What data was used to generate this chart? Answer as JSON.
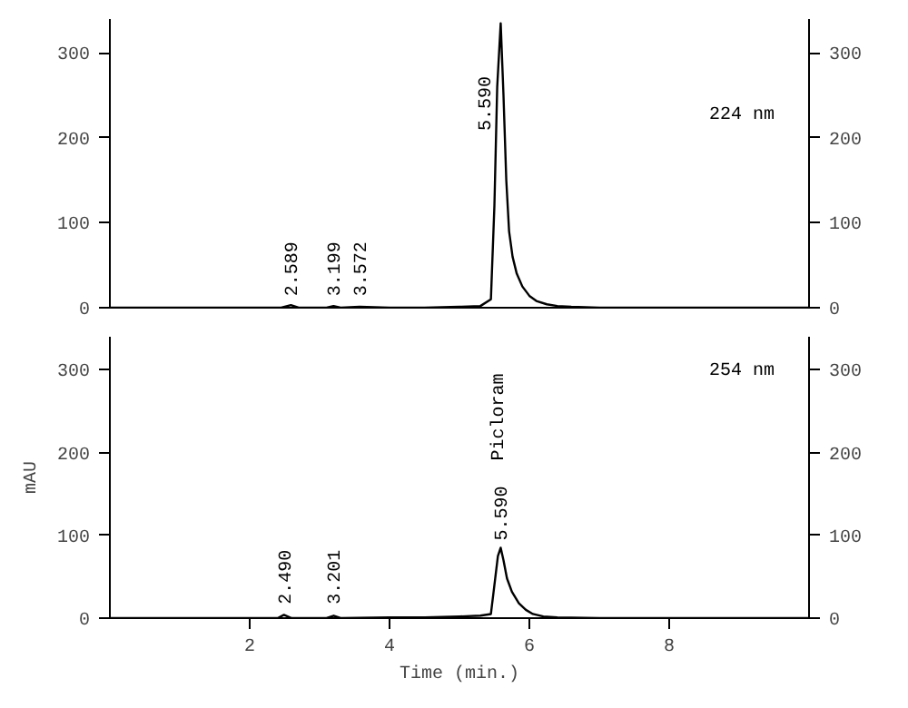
{
  "chart_data": [
    {
      "type": "line",
      "xlim": [
        0,
        10
      ],
      "xticks": [
        2,
        4,
        6,
        8
      ],
      "ylim": [
        0,
        340
      ],
      "yticks": [
        0,
        100,
        200,
        300
      ],
      "y2lim": [
        0,
        340
      ],
      "y2ticks": [
        0,
        100,
        200,
        300
      ],
      "tick_labels": "y",
      "grid": false,
      "series": [
        {
          "color": "#000000",
          "x": [
            0,
            1,
            2,
            2.45,
            2.589,
            2.7,
            3.1,
            3.199,
            3.3,
            3.572,
            4,
            4.5,
            5,
            5.3,
            5.45,
            5.5,
            5.54,
            5.59,
            5.63,
            5.67,
            5.71,
            5.76,
            5.82,
            5.9,
            6.0,
            6.1,
            6.25,
            6.4,
            6.6,
            7,
            8,
            9,
            10
          ],
          "values": [
            0,
            0,
            0,
            0,
            3,
            0,
            0,
            2,
            0,
            1,
            0,
            0,
            1,
            2,
            10,
            120,
            260,
            335,
            250,
            150,
            90,
            60,
            40,
            25,
            14,
            8,
            4,
            2,
            1,
            0,
            0,
            0,
            0
          ]
        }
      ],
      "annotations": [
        {
          "text": "2.589",
          "x": 2.589,
          "y": 5
        },
        {
          "text": "3.199",
          "x": 3.199,
          "y": 5
        },
        {
          "text": "3.572",
          "x": 3.572,
          "y": 5
        },
        {
          "text": "5.590",
          "x": 5.59,
          "y": 200
        },
        "224 nm"
      ]
    },
    {
      "type": "line",
      "xlabel": "Time (min.)",
      "ylabel": "mAU",
      "xlim": [
        0,
        10
      ],
      "xticks": [
        2,
        4,
        6,
        8
      ],
      "ylim": [
        0,
        340
      ],
      "yticks": [
        0,
        100,
        200,
        300
      ],
      "y2lim": [
        0,
        340
      ],
      "y2ticks": [
        0,
        100,
        200,
        300
      ],
      "grid": false,
      "series": [
        {
          "color": "#000000",
          "x": [
            0,
            1,
            2,
            2.4,
            2.49,
            2.6,
            3.1,
            3.201,
            3.3,
            4,
            4.5,
            5,
            5.3,
            5.45,
            5.5,
            5.55,
            5.59,
            5.63,
            5.68,
            5.75,
            5.85,
            5.95,
            6.05,
            6.2,
            6.4,
            7,
            8,
            9,
            10
          ],
          "values": [
            0,
            0,
            0,
            0,
            4,
            0,
            0,
            3,
            0,
            1,
            1,
            2,
            3,
            5,
            40,
            75,
            85,
            70,
            48,
            32,
            18,
            10,
            5,
            2,
            1,
            0,
            0,
            0,
            0
          ]
        }
      ],
      "annotations": [
        {
          "text": "2.490",
          "x": 2.49,
          "y": 8
        },
        {
          "text": "3.201",
          "x": 3.201,
          "y": 8
        },
        {
          "text": "5.590",
          "x": 5.59,
          "y": 85
        },
        "Picloram",
        "254 nm"
      ]
    }
  ]
}
